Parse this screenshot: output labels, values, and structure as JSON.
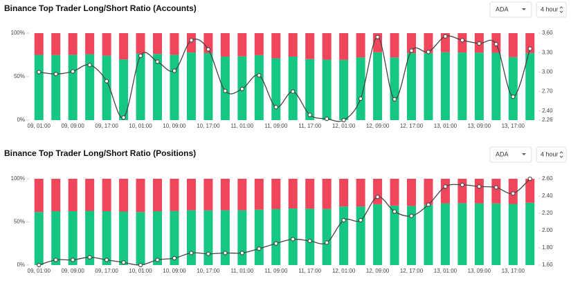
{
  "chart_data": [
    {
      "type": "bar",
      "stacked": true,
      "title": "Binance Top Trader Long/Short Ratio (Accounts)",
      "selector": "ADA",
      "interval": "4 hour",
      "categories": [
        "09, 01:00",
        null,
        "09, 09:00",
        null,
        "09, 17:00",
        null,
        "10, 01:00",
        null,
        "10, 09:00",
        null,
        "10, 17:00",
        null,
        "11, 01:00",
        null,
        "11, 09:00",
        null,
        "11, 17:00",
        null,
        "12, 01:00",
        null,
        "12, 09:00",
        null,
        "12, 17:00",
        null,
        "13, 01:00",
        null,
        "13, 09:00",
        null,
        "13, 17:00",
        null
      ],
      "series": [
        {
          "color": "#16c784",
          "values": [
            75.0,
            74.8,
            75.1,
            75.7,
            74.1,
            69.7,
            76.5,
            76.0,
            75.1,
            77.7,
            77.0,
            73.0,
            73.3,
            74.7,
            71.1,
            73.0,
            70.1,
            69.5,
            69.3,
            72.1,
            78.0,
            72.1,
            76.9,
            76.8,
            78.0,
            77.7,
            77.5,
            77.4,
            72.4,
            77.1
          ]
        },
        {
          "color": "#f0465b",
          "values": [
            25.0,
            25.2,
            24.9,
            24.3,
            25.9,
            30.3,
            23.5,
            24.0,
            24.9,
            22.3,
            23.0,
            27.0,
            26.7,
            25.3,
            28.9,
            27.0,
            29.9,
            30.5,
            30.7,
            27.9,
            22.0,
            27.9,
            23.1,
            23.2,
            22.0,
            22.3,
            22.5,
            22.6,
            27.6,
            22.9
          ]
        },
        {
          "type": "line",
          "axis": "y2",
          "color": "#444444",
          "values": [
            3.0,
            2.97,
            3.01,
            3.11,
            2.86,
            2.3,
            3.25,
            3.16,
            3.02,
            3.49,
            3.35,
            2.71,
            2.74,
            2.95,
            2.46,
            2.7,
            2.34,
            2.28,
            2.26,
            2.59,
            3.54,
            2.58,
            3.33,
            3.31,
            3.55,
            3.49,
            3.44,
            3.43,
            2.62,
            3.36
          ]
        }
      ],
      "ylim": [
        0,
        100
      ],
      "yticks": [
        {
          "value": 0,
          "label": "0%"
        },
        {
          "value": 50,
          "label": "50%"
        },
        {
          "value": 100,
          "label": "100%"
        }
      ],
      "y2lim": [
        2.26,
        3.6
      ],
      "y2ticks": [
        2.26,
        {
          "value": 2.4,
          "label": "2.40"
        },
        {
          "value": 2.7,
          "label": "2.70"
        },
        {
          "value": 3.0,
          "label": "3.00"
        },
        {
          "value": 3.3,
          "label": "3.30"
        },
        {
          "value": 3.6,
          "label": "3.60"
        }
      ]
    },
    {
      "type": "bar",
      "stacked": true,
      "title": "Binance Top Trader Long/Short Ratio (Positions)",
      "selector": "ADA",
      "interval": "4 hour",
      "categories": [
        "09, 01:00",
        null,
        "09, 09:00",
        null,
        "09, 17:00",
        null,
        "10, 01:00",
        null,
        "10, 09:00",
        null,
        "10, 17:00",
        null,
        "11, 01:00",
        null,
        "11, 09:00",
        null,
        "11, 17:00",
        null,
        "12, 01:00",
        null,
        "12, 09:00",
        null,
        "12, 17:00",
        null,
        "13, 01:00",
        null,
        "13, 09:00",
        null,
        "13, 17:00",
        null
      ],
      "series": [
        {
          "color": "#16c784",
          "values": [
            61.5,
            62.4,
            62.4,
            62.8,
            62.4,
            62.0,
            61.5,
            62.4,
            62.7,
            63.5,
            63.4,
            63.5,
            63.5,
            64.2,
            64.9,
            65.5,
            65.3,
            65.0,
            67.9,
            67.9,
            70.5,
            68.9,
            68.5,
            69.7,
            71.5,
            71.7,
            71.5,
            71.4,
            70.8,
            72.2
          ]
        },
        {
          "color": "#f0465b",
          "values": [
            38.5,
            37.6,
            37.6,
            37.2,
            37.6,
            38.0,
            38.5,
            37.6,
            37.3,
            36.5,
            36.6,
            36.5,
            36.5,
            35.8,
            35.1,
            34.5,
            34.7,
            35.0,
            32.1,
            32.1,
            29.5,
            31.1,
            31.5,
            30.3,
            28.5,
            28.3,
            28.5,
            28.6,
            29.2,
            27.8
          ]
        },
        {
          "type": "line",
          "axis": "y2",
          "color": "#444444",
          "values": [
            1.6,
            1.66,
            1.66,
            1.69,
            1.66,
            1.63,
            1.6,
            1.66,
            1.68,
            1.74,
            1.73,
            1.74,
            1.74,
            1.79,
            1.85,
            1.9,
            1.88,
            1.86,
            2.12,
            2.12,
            2.39,
            2.22,
            2.17,
            2.3,
            2.51,
            2.53,
            2.51,
            2.5,
            2.43,
            2.6
          ]
        }
      ],
      "ylim": [
        0,
        100
      ],
      "yticks": [
        {
          "value": 0,
          "label": "0%"
        },
        {
          "value": 50,
          "label": "50%"
        },
        {
          "value": 100,
          "label": "100%"
        }
      ],
      "y2lim": [
        1.6,
        2.6
      ],
      "y2ticks": [
        {
          "value": 1.6,
          "label": "1.60"
        },
        {
          "value": 1.8,
          "label": "1.80"
        },
        {
          "value": 2.0,
          "label": "2.00"
        },
        {
          "value": 2.2,
          "label": "2.20"
        },
        {
          "value": 2.4,
          "label": "2.40"
        },
        {
          "value": 2.6,
          "label": "2.60"
        }
      ]
    }
  ]
}
